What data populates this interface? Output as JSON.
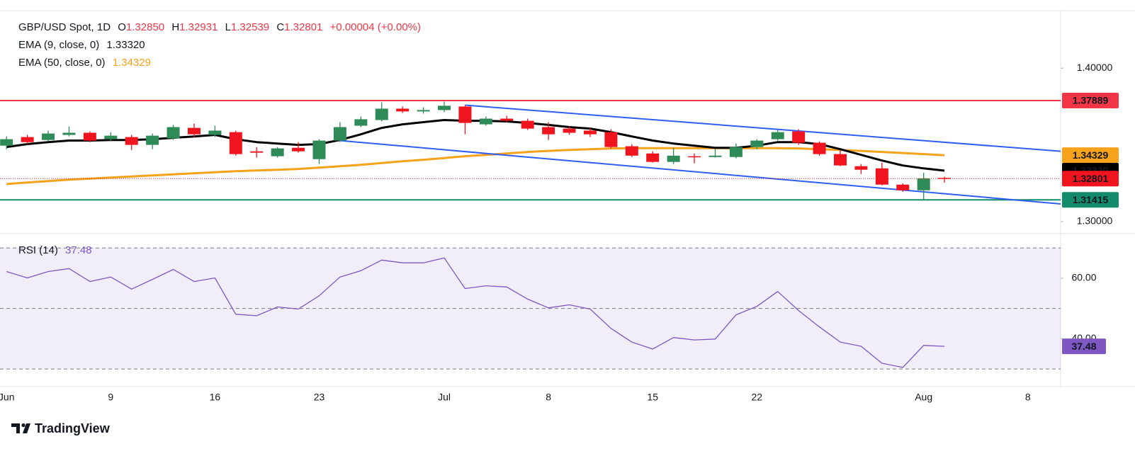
{
  "chart_data": [
    {
      "type": "candlestick",
      "title": "GBP/USD Spot, 1D",
      "ohlc_keys": [
        "O",
        "H",
        "L",
        "C"
      ],
      "last_labels": [
        "1.32850",
        "1.32931",
        "1.32539",
        "1.32801"
      ],
      "change": "+0.00004 (+0.00%)",
      "categories": [
        "Jun",
        null,
        null,
        null,
        null,
        "9",
        null,
        null,
        null,
        null,
        "16",
        null,
        null,
        null,
        null,
        "23",
        null,
        null,
        null,
        null,
        null,
        "Jul",
        null,
        null,
        null,
        null,
        "8",
        null,
        null,
        null,
        null,
        "15",
        null,
        null,
        null,
        null,
        "22",
        null,
        null,
        null,
        null,
        null,
        null,
        null,
        "Aug",
        null,
        null,
        null,
        null,
        "8"
      ],
      "open": [
        1.3495,
        1.3551,
        1.3532,
        1.3565,
        1.3579,
        1.3537,
        1.3551,
        1.35,
        1.3542,
        1.3611,
        1.3565,
        1.3583,
        1.3458,
        1.3426,
        1.3481,
        1.3407,
        1.3528,
        1.3625,
        1.3662,
        1.3736,
        1.3718,
        1.3727,
        1.375,
        1.3634,
        1.3671,
        1.3657,
        1.3616,
        1.3606,
        1.3593,
        1.3583,
        1.3491,
        1.3444,
        1.3389,
        1.3426,
        1.3421,
        1.3421,
        1.3486,
        1.3537,
        1.3588,
        1.3514,
        1.344,
        1.3361,
        1.3347,
        1.3241,
        1.3204,
        1.3285,
        null,
        null,
        null,
        null
      ],
      "high": [
        1.3555,
        1.3565,
        1.3593,
        1.362,
        1.3588,
        1.3583,
        1.3565,
        1.3574,
        1.363,
        1.3639,
        1.3625,
        1.3593,
        1.3486,
        1.3486,
        1.3518,
        1.3537,
        1.3648,
        1.3685,
        1.3778,
        1.375,
        1.3745,
        1.3782,
        1.3759,
        1.3685,
        1.369,
        1.3671,
        1.3648,
        1.362,
        1.3611,
        1.3602,
        1.3505,
        1.3458,
        1.3481,
        1.3444,
        1.3472,
        1.3509,
        1.3537,
        1.3597,
        1.3602,
        1.3523,
        1.3463,
        1.3375,
        1.3384,
        1.325,
        1.3319,
        1.32931,
        null,
        null,
        null,
        null
      ],
      "low": [
        1.3472,
        1.3505,
        1.3523,
        1.3555,
        1.3518,
        1.3523,
        1.3467,
        1.3472,
        1.3532,
        1.3551,
        1.3551,
        1.343,
        1.3417,
        1.3417,
        1.3449,
        1.3375,
        1.3518,
        1.3616,
        1.3653,
        1.3708,
        1.3704,
        1.3713,
        1.3569,
        1.3625,
        1.3648,
        1.3597,
        1.3532,
        1.3565,
        1.3551,
        1.3477,
        1.3421,
        1.3384,
        1.3375,
        1.338,
        1.3417,
        1.3412,
        1.3472,
        1.3528,
        1.35,
        1.343,
        1.3361,
        1.331,
        1.3236,
        1.3194,
        1.3142,
        1.32539,
        null,
        null,
        null,
        null
      ],
      "close": [
        1.3537,
        1.3518,
        1.3574,
        1.3579,
        1.3528,
        1.356,
        1.35,
        1.356,
        1.3616,
        1.3569,
        1.3593,
        1.344,
        1.3449,
        1.3477,
        1.3458,
        1.3528,
        1.3616,
        1.3667,
        1.3736,
        1.3718,
        1.3727,
        1.3755,
        1.3643,
        1.3671,
        1.3657,
        1.3606,
        1.3569,
        1.3579,
        1.3569,
        1.3486,
        1.343,
        1.3389,
        1.343,
        1.3421,
        1.343,
        1.3486,
        1.3528,
        1.3583,
        1.3514,
        1.344,
        1.3366,
        1.3338,
        1.3241,
        1.3204,
        1.3282,
        1.32801,
        null,
        null,
        null,
        null
      ],
      "up_color": "#2e8b57",
      "down_color": "#f0141e",
      "series": [
        {
          "name": "EMA (9, close, 0)",
          "color": "#000000",
          "last_label": "1.33320",
          "values": [
            1.3486,
            1.3505,
            1.3518,
            1.3528,
            1.3528,
            1.3532,
            1.3532,
            1.3537,
            1.3546,
            1.3555,
            1.3565,
            1.3537,
            1.3518,
            1.3509,
            1.35,
            1.3505,
            1.3532,
            1.3569,
            1.3611,
            1.3634,
            1.3648,
            1.3662,
            1.3657,
            1.3657,
            1.3653,
            1.3643,
            1.363,
            1.3616,
            1.3606,
            1.3583,
            1.3555,
            1.3528,
            1.3509,
            1.3495,
            1.3481,
            1.3481,
            1.3495,
            1.3518,
            1.3518,
            1.3505,
            1.3472,
            1.3435,
            1.3398,
            1.3366,
            1.3347,
            1.3332,
            null,
            null,
            null,
            null
          ]
        },
        {
          "name": "EMA (50, close, 0)",
          "color": "#f7a21b",
          "last_label": "1.34329",
          "values": [
            1.3245,
            1.3255,
            1.3264,
            1.3273,
            1.328,
            1.3287,
            1.3294,
            1.3301,
            1.3308,
            1.3315,
            1.3322,
            1.3329,
            1.3333,
            1.3338,
            1.3343,
            1.3352,
            1.3361,
            1.337,
            1.3382,
            1.3393,
            1.3403,
            1.3414,
            1.3426,
            1.3435,
            1.3444,
            1.3454,
            1.3461,
            1.3467,
            1.3472,
            1.3477,
            1.3479,
            1.3479,
            1.3479,
            1.3479,
            1.3479,
            1.3479,
            1.3479,
            1.3479,
            1.3477,
            1.3472,
            1.3467,
            1.3461,
            1.3454,
            1.3447,
            1.344,
            1.34329,
            null,
            null,
            null,
            null
          ]
        }
      ],
      "levels": [
        {
          "value": 1.37889,
          "color": "#f23645"
        },
        {
          "value": 1.31415,
          "color": "#138a6a"
        }
      ],
      "trendlines": [
        {
          "x": [
            22,
            51
          ],
          "values": [
            1.3759,
            1.3454
          ],
          "color": "#2f5ff0"
        },
        {
          "x": [
            16,
            51
          ],
          "values": [
            1.3528,
            1.311
          ],
          "color": "#2f5ff0"
        }
      ],
      "ylim": [
        1.2926,
        1.4375
      ],
      "yticks": [
        {
          "value": 1.4,
          "label": "1.40000"
        },
        {
          "value": 1.3,
          "label": "1.30000"
        }
      ]
    },
    {
      "type": "line",
      "series": [
        {
          "name": "RSI (14)",
          "color": "#7e57c2",
          "values": [
            62.2,
            60.1,
            62.2,
            63.2,
            58.9,
            60.4,
            56.4,
            59.6,
            62.9,
            58.9,
            60.1,
            48.1,
            47.6,
            50.5,
            49.8,
            54.2,
            60.4,
            62.5,
            66.0,
            65.1,
            65.1,
            66.7,
            56.6,
            57.5,
            57.1,
            53.1,
            50.2,
            51.2,
            49.8,
            43.4,
            38.9,
            36.6,
            40.4,
            39.6,
            39.9,
            47.9,
            50.7,
            55.6,
            49.3,
            43.9,
            38.9,
            37.5,
            31.9,
            30.5,
            37.8,
            37.48,
            null,
            null,
            null,
            null
          ]
        }
      ],
      "levels": [
        70,
        50,
        30
      ],
      "band_color": "#7e57c2",
      "ylim": [
        24.4,
        74.5
      ],
      "yticks": [
        {
          "value": 60,
          "label": "60.00"
        },
        {
          "value": 40,
          "label": "40.00"
        }
      ]
    }
  ],
  "brand": "TradingView"
}
